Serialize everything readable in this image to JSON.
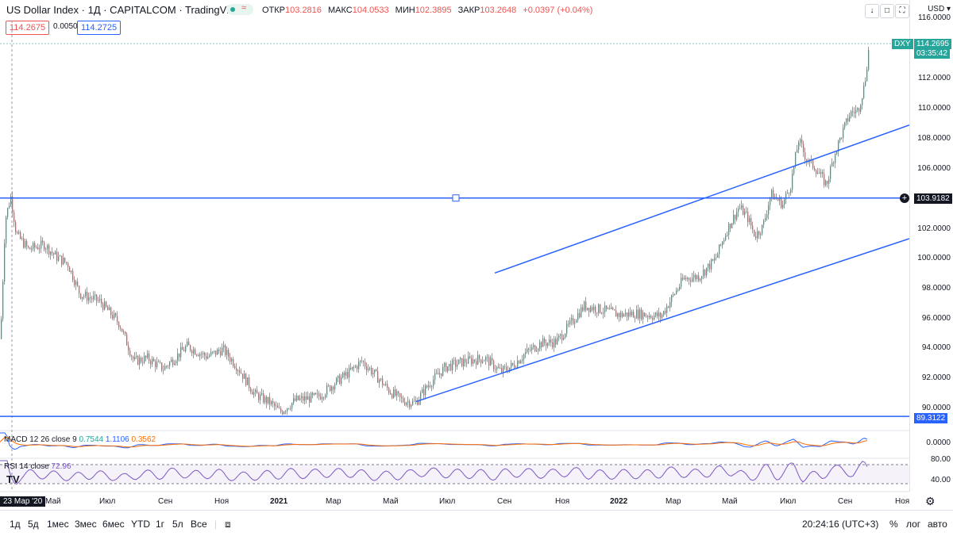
{
  "header": {
    "symbol": "US Dollar Index · 1Д · CAPITALCOM · TradingView",
    "ohlc": [
      {
        "k": "ОТКР",
        "v": "103.2816"
      },
      {
        "k": "МАКС",
        "v": "104.0533"
      },
      {
        "k": "МИН",
        "v": "102.3895"
      },
      {
        "k": "ЗАКР",
        "v": "103.2648"
      },
      {
        "k": "",
        "v": "+0.0397 (+0.04%)"
      }
    ],
    "bid": "114.2675",
    "spread": "0.0050",
    "ask": "114.2725",
    "currency": "USD",
    "currency_chevron": "▾"
  },
  "price_axis": {
    "labels": [
      "116.0000",
      "112.0000",
      "110.0000",
      "108.0000",
      "106.0000",
      "102.0000",
      "100.0000",
      "98.0000",
      "96.0000",
      "94.0000",
      "92.0000",
      "90.0000"
    ],
    "last_symbol": "DXY",
    "last_price": "114.2695",
    "countdown": "03:35:42",
    "hline_price": "103.9182",
    "support_price": "89.3122"
  },
  "indicators": {
    "macd_name": "MACD 12 26 close 9",
    "macd_values": [
      "0.7544",
      "1.1106",
      "0.3562"
    ],
    "macd_axis": "0.0000",
    "rsi_name": "RSI 14 close",
    "rsi_value": "72.96",
    "rsi_axis": [
      "80.00",
      "40.00"
    ]
  },
  "time_axis": {
    "cursor_date": "23 Мар '20",
    "labels": [
      "Май",
      "Июл",
      "Сен",
      "Ноя",
      "2021",
      "Мар",
      "Май",
      "Июл",
      "Сен",
      "Ноя",
      "2022",
      "Мар",
      "Май",
      "Июл",
      "Сен",
      "Ноя"
    ]
  },
  "footer": {
    "timeframes": [
      "1д",
      "5д",
      "1мес",
      "3мес",
      "6мес",
      "YTD",
      "1г",
      "5л",
      "Все"
    ],
    "clock": "20:24:16 (UTC+3)",
    "pct": "%",
    "log": "лог",
    "auto": "авто"
  },
  "colors": {
    "up": "#26a69a",
    "down": "#ef5350",
    "line": "#2962ff",
    "macd": "#2962ff",
    "signal": "#ff6d00",
    "rsi": "#7e57c2"
  },
  "chart_data": {
    "type": "candlestick",
    "title": "US Dollar Index · 1Д · CAPITALCOM",
    "x_range": [
      "2020-03",
      "2022-11"
    ],
    "ylim": [
      89,
      116
    ],
    "price_path": [
      [
        0,
        94.5
      ],
      [
        6,
        102.5
      ],
      [
        13,
        104.0
      ],
      [
        20,
        101.5
      ],
      [
        35,
        100.5
      ],
      [
        55,
        100.8
      ],
      [
        70,
        100.0
      ],
      [
        85,
        99.5
      ],
      [
        100,
        97.5
      ],
      [
        125,
        97.0
      ],
      [
        150,
        95.5
      ],
      [
        168,
        93.0
      ],
      [
        185,
        93.2
      ],
      [
        205,
        92.5
      ],
      [
        235,
        94.0
      ],
      [
        260,
        93.3
      ],
      [
        280,
        93.8
      ],
      [
        300,
        92.5
      ],
      [
        320,
        90.8
      ],
      [
        340,
        90.2
      ],
      [
        352,
        89.6
      ],
      [
        372,
        90.4
      ],
      [
        400,
        90.6
      ],
      [
        420,
        91.5
      ],
      [
        440,
        92.3
      ],
      [
        455,
        93.0
      ],
      [
        470,
        92.2
      ],
      [
        490,
        91.0
      ],
      [
        505,
        90.4
      ],
      [
        522,
        90.2
      ],
      [
        540,
        91.5
      ],
      [
        560,
        92.6
      ],
      [
        585,
        93.0
      ],
      [
        610,
        93.2
      ],
      [
        630,
        92.3
      ],
      [
        645,
        92.7
      ],
      [
        660,
        93.5
      ],
      [
        680,
        94.2
      ],
      [
        700,
        94.3
      ],
      [
        715,
        95.3
      ],
      [
        735,
        96.7
      ],
      [
        760,
        96.4
      ],
      [
        780,
        96.1
      ],
      [
        800,
        96.2
      ],
      [
        815,
        96.1
      ],
      [
        832,
        96.0
      ],
      [
        845,
        97.2
      ],
      [
        860,
        98.5
      ],
      [
        880,
        98.7
      ],
      [
        900,
        99.8
      ],
      [
        915,
        101.8
      ],
      [
        930,
        103.3
      ],
      [
        940,
        102.7
      ],
      [
        950,
        101.4
      ],
      [
        960,
        102.0
      ],
      [
        970,
        104.2
      ],
      [
        985,
        103.5
      ],
      [
        995,
        104.8
      ],
      [
        1005,
        107.8
      ],
      [
        1015,
        106.5
      ],
      [
        1025,
        106.0
      ],
      [
        1040,
        104.8
      ],
      [
        1050,
        106.8
      ],
      [
        1060,
        108.3
      ],
      [
        1070,
        109.6
      ],
      [
        1080,
        109.8
      ],
      [
        1088,
        111.5
      ],
      [
        1094,
        114.2
      ]
    ],
    "trendlines": [
      {
        "from": [
          "2021-05-25",
          90.3
        ],
        "to": [
          "2022-11-01",
          101.2
        ]
      },
      {
        "from": [
          "2021-09-25",
          98.9
        ],
        "to": [
          "2022-11-01",
          108.8
        ]
      }
    ],
    "horizontal_lines": [
      103.9182,
      89.3122
    ],
    "last_price": 114.2695
  }
}
